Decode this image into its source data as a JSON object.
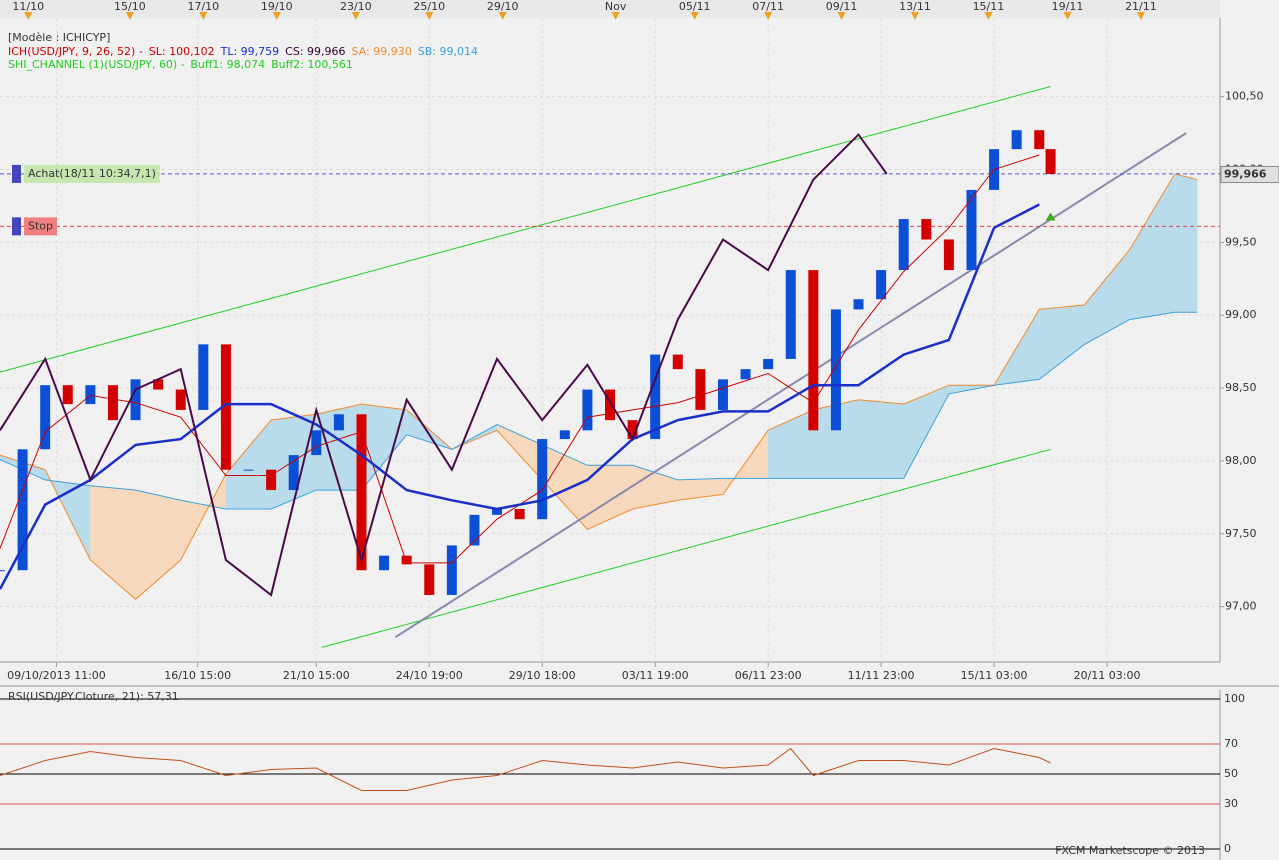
{
  "chart_data": [
    {
      "type": "candlestick",
      "header": "[Modèle : ICHICYP]",
      "legend_lines": [
        [
          {
            "text": "ICH(USD/JPY, 9, 26, 52) -",
            "color": "#cc0000"
          },
          {
            "text": "SL: 100,102",
            "color": "#cc0000"
          },
          {
            "text": "TL: 99,759",
            "color": "#1a2fc8"
          },
          {
            "text": "CS: 99,966",
            "color": "#330033"
          },
          {
            "text": "SA: 99,930",
            "color": "#f08a2c"
          },
          {
            "text": "SB: 99,014",
            "color": "#3aa0d8"
          }
        ],
        [
          {
            "text": "SHI_CHANNEL (1)(USD/JPY, 60) -",
            "color": "#22cc22"
          },
          {
            "text": "Buff1: 98,074",
            "color": "#22cc22"
          },
          {
            "text": "Buff2: 100,561",
            "color": "#22cc22"
          }
        ]
      ],
      "xlim": [
        0,
        216
      ],
      "ylim": [
        96.62,
        101.04
      ],
      "yticks": [
        {
          "value": 97,
          "label": "97,00"
        },
        {
          "value": 97.5,
          "label": "97,50"
        },
        {
          "value": 98,
          "label": "98,00"
        },
        {
          "value": 98.5,
          "label": "98,50"
        },
        {
          "value": 99,
          "label": "99,00"
        },
        {
          "value": 99.5,
          "label": "99,50"
        },
        {
          "value": 100,
          "label": "100,00"
        },
        {
          "value": 100.5,
          "label": "100,50"
        }
      ],
      "xticks_top": [
        {
          "value": 5,
          "label": "11/10"
        },
        {
          "value": 23,
          "label": "15/10"
        },
        {
          "value": 36,
          "label": "17/10"
        },
        {
          "value": 49,
          "label": "19/10"
        },
        {
          "value": 63,
          "label": "23/10"
        },
        {
          "value": 76,
          "label": "25/10"
        },
        {
          "value": 89,
          "label": "29/10"
        },
        {
          "value": 109,
          "label": "Nov"
        },
        {
          "value": 123,
          "label": "05/11"
        },
        {
          "value": 136,
          "label": "07/11"
        },
        {
          "value": 149,
          "label": "09/11"
        },
        {
          "value": 162,
          "label": "13/11"
        },
        {
          "value": 175,
          "label": "15/11"
        },
        {
          "value": 189,
          "label": "19/11"
        },
        {
          "value": 202,
          "label": "21/11"
        }
      ],
      "xticks": [
        {
          "value": 10,
          "label": "09/10/2013 11:00"
        },
        {
          "value": 35,
          "label": "16/10 15:00"
        },
        {
          "value": 56,
          "label": "21/10 15:00"
        },
        {
          "value": 76,
          "label": "24/10 19:00"
        },
        {
          "value": 96,
          "label": "29/10 18:00"
        },
        {
          "value": 116,
          "label": "03/11 19:00"
        },
        {
          "value": 136,
          "label": "06/11 23:00"
        },
        {
          "value": 156,
          "label": "11/11 23:00"
        },
        {
          "value": 176,
          "label": "15/11 03:00"
        },
        {
          "value": 196,
          "label": "20/11 03:00"
        }
      ],
      "grid": true,
      "price": {
        "up_color": "#0b4fd6",
        "down_color": "#d40000",
        "x": [
          0,
          4,
          8,
          12,
          16,
          20,
          24,
          28,
          32,
          36,
          40,
          44,
          48,
          52,
          56,
          60,
          64,
          68,
          72,
          76,
          80,
          84,
          88,
          92,
          96,
          100,
          104,
          108,
          112,
          116,
          120,
          124,
          128,
          132,
          136,
          140,
          144,
          148,
          152,
          156,
          160,
          164,
          168,
          172,
          176,
          180,
          184,
          186
        ],
        "values": [
          97.25,
          98.08,
          98.52,
          98.39,
          98.52,
          98.28,
          98.56,
          98.49,
          98.35,
          98.8,
          97.94,
          97.94,
          97.8,
          98.04,
          98.21,
          98.32,
          97.25,
          97.35,
          97.29,
          97.08,
          97.42,
          97.63,
          97.67,
          97.6,
          98.15,
          98.21,
          98.49,
          98.28,
          98.15,
          98.73,
          98.63,
          98.35,
          98.56,
          98.63,
          98.7,
          99.31,
          98.21,
          99.04,
          99.11,
          99.31,
          99.66,
          99.52,
          99.31,
          99.86,
          100.14,
          100.27,
          100.14,
          99.97
        ]
      },
      "lines": [
        {
          "color": "#cc0000",
          "width": 1,
          "x": [
            0,
            8,
            16,
            24,
            32,
            40,
            48,
            56,
            64,
            72,
            80,
            88,
            96,
            104,
            112,
            120,
            128,
            136,
            144,
            152,
            160,
            168,
            176,
            184
          ],
          "values": [
            97.4,
            98.2,
            98.45,
            98.4,
            98.3,
            97.9,
            97.9,
            98.1,
            98.2,
            97.3,
            97.3,
            97.6,
            97.8,
            98.3,
            98.35,
            98.4,
            98.5,
            98.6,
            98.4,
            98.9,
            99.3,
            99.6,
            100,
            100.1
          ]
        },
        {
          "color": "#1a2fc8",
          "width": 2.5,
          "x": [
            0,
            8,
            16,
            24,
            32,
            40,
            48,
            56,
            64,
            72,
            80,
            88,
            96,
            104,
            112,
            120,
            128,
            136,
            144,
            152,
            160,
            168,
            176,
            184
          ],
          "values": [
            97.12,
            97.7,
            97.87,
            98.11,
            98.15,
            98.39,
            98.39,
            98.25,
            98.04,
            97.8,
            97.73,
            97.67,
            97.73,
            97.87,
            98.15,
            98.28,
            98.34,
            98.34,
            98.52,
            98.52,
            98.73,
            98.83,
            99.6,
            99.76
          ]
        },
        {
          "color": "#4a0a4a",
          "width": 2,
          "x": [
            0,
            8,
            16,
            24,
            32,
            40,
            48,
            56,
            64,
            72,
            80,
            88,
            96,
            104,
            112,
            120,
            128,
            136,
            144,
            152,
            157
          ],
          "values": [
            98.21,
            98.7,
            97.87,
            98.49,
            98.63,
            97.32,
            97.08,
            98.35,
            97.32,
            98.42,
            97.94,
            98.7,
            98.28,
            98.66,
            98.15,
            98.97,
            99.52,
            99.31,
            99.93,
            100.24,
            99.97
          ]
        }
      ],
      "cloud": {
        "fill_up": "#b9dcec",
        "fill_down": "#f6d9bd",
        "x": [
          0,
          8,
          16,
          24,
          32,
          40,
          48,
          56,
          64,
          72,
          80,
          88,
          96,
          104,
          112,
          120,
          128,
          136,
          144,
          152,
          160,
          168,
          176,
          184,
          192,
          200,
          208,
          212
        ],
        "sa": {
          "color": "#f08a2c",
          "values": [
            98.04,
            97.94,
            97.32,
            97.05,
            97.32,
            97.91,
            98.28,
            98.32,
            98.39,
            98.35,
            98.08,
            98.21,
            97.87,
            97.53,
            97.67,
            97.73,
            97.77,
            98.21,
            98.35,
            98.42,
            98.39,
            98.52,
            98.52,
            99.04,
            99.07,
            99.45,
            99.97,
            99.93
          ]
        },
        "sb": {
          "color": "#3aa0d8",
          "values": [
            98.01,
            97.87,
            97.83,
            97.8,
            97.73,
            97.67,
            97.67,
            97.8,
            97.8,
            98.18,
            98.08,
            98.25,
            98.11,
            97.97,
            97.97,
            97.87,
            97.88,
            97.88,
            97.88,
            97.88,
            97.88,
            98.46,
            98.52,
            98.56,
            98.8,
            98.97,
            99.02,
            99.02
          ]
        }
      },
      "trendlines": [
        {
          "color": "#22cc22",
          "x": [
            0,
            186
          ],
          "values": [
            98.61,
            100.57
          ]
        },
        {
          "color": "#22cc22",
          "x": [
            57,
            186
          ],
          "values": [
            96.72,
            98.08
          ]
        },
        {
          "color": "#8888aa",
          "x": [
            70,
            210
          ],
          "values": [
            96.79,
            100.25
          ]
        }
      ],
      "levels": [
        {
          "value": 99.97,
          "label": "Achat(18/11 10:34,7,1)",
          "line_color": "#5555dd",
          "box_color": "#c8e6b0",
          "text_color": "#6a8a5a"
        },
        {
          "value": 99.61,
          "label": "Stop",
          "line_color": "#dd4444",
          "box_color": "#f08080",
          "text_color": "#7a2020"
        }
      ],
      "last_price": {
        "value": 99.966,
        "label": "99,966"
      }
    },
    {
      "type": "line",
      "title": "RSI(USD/JPY.Cloture, 21): 57,31",
      "color": "#c0501a",
      "xlim": [
        0,
        216
      ],
      "ylim": [
        -4,
        106
      ],
      "yticks": [
        0,
        30,
        50,
        70,
        100
      ],
      "ytick_colors": [
        "#000000",
        "#e05050",
        "#000000",
        "#e05050",
        "#000000"
      ],
      "x": [
        0,
        8,
        16,
        24,
        32,
        40,
        48,
        56,
        64,
        72,
        80,
        88,
        96,
        104,
        112,
        120,
        128,
        136,
        140,
        144,
        152,
        160,
        168,
        176,
        184,
        186
      ],
      "values": [
        49,
        59,
        65,
        61,
        59,
        49,
        53,
        54,
        39,
        39,
        46,
        49,
        59,
        56,
        54,
        58,
        54,
        56,
        67,
        49,
        59,
        59,
        56,
        67,
        61,
        57.31
      ],
      "footer": "FXCM Marketscope © 2013"
    }
  ]
}
